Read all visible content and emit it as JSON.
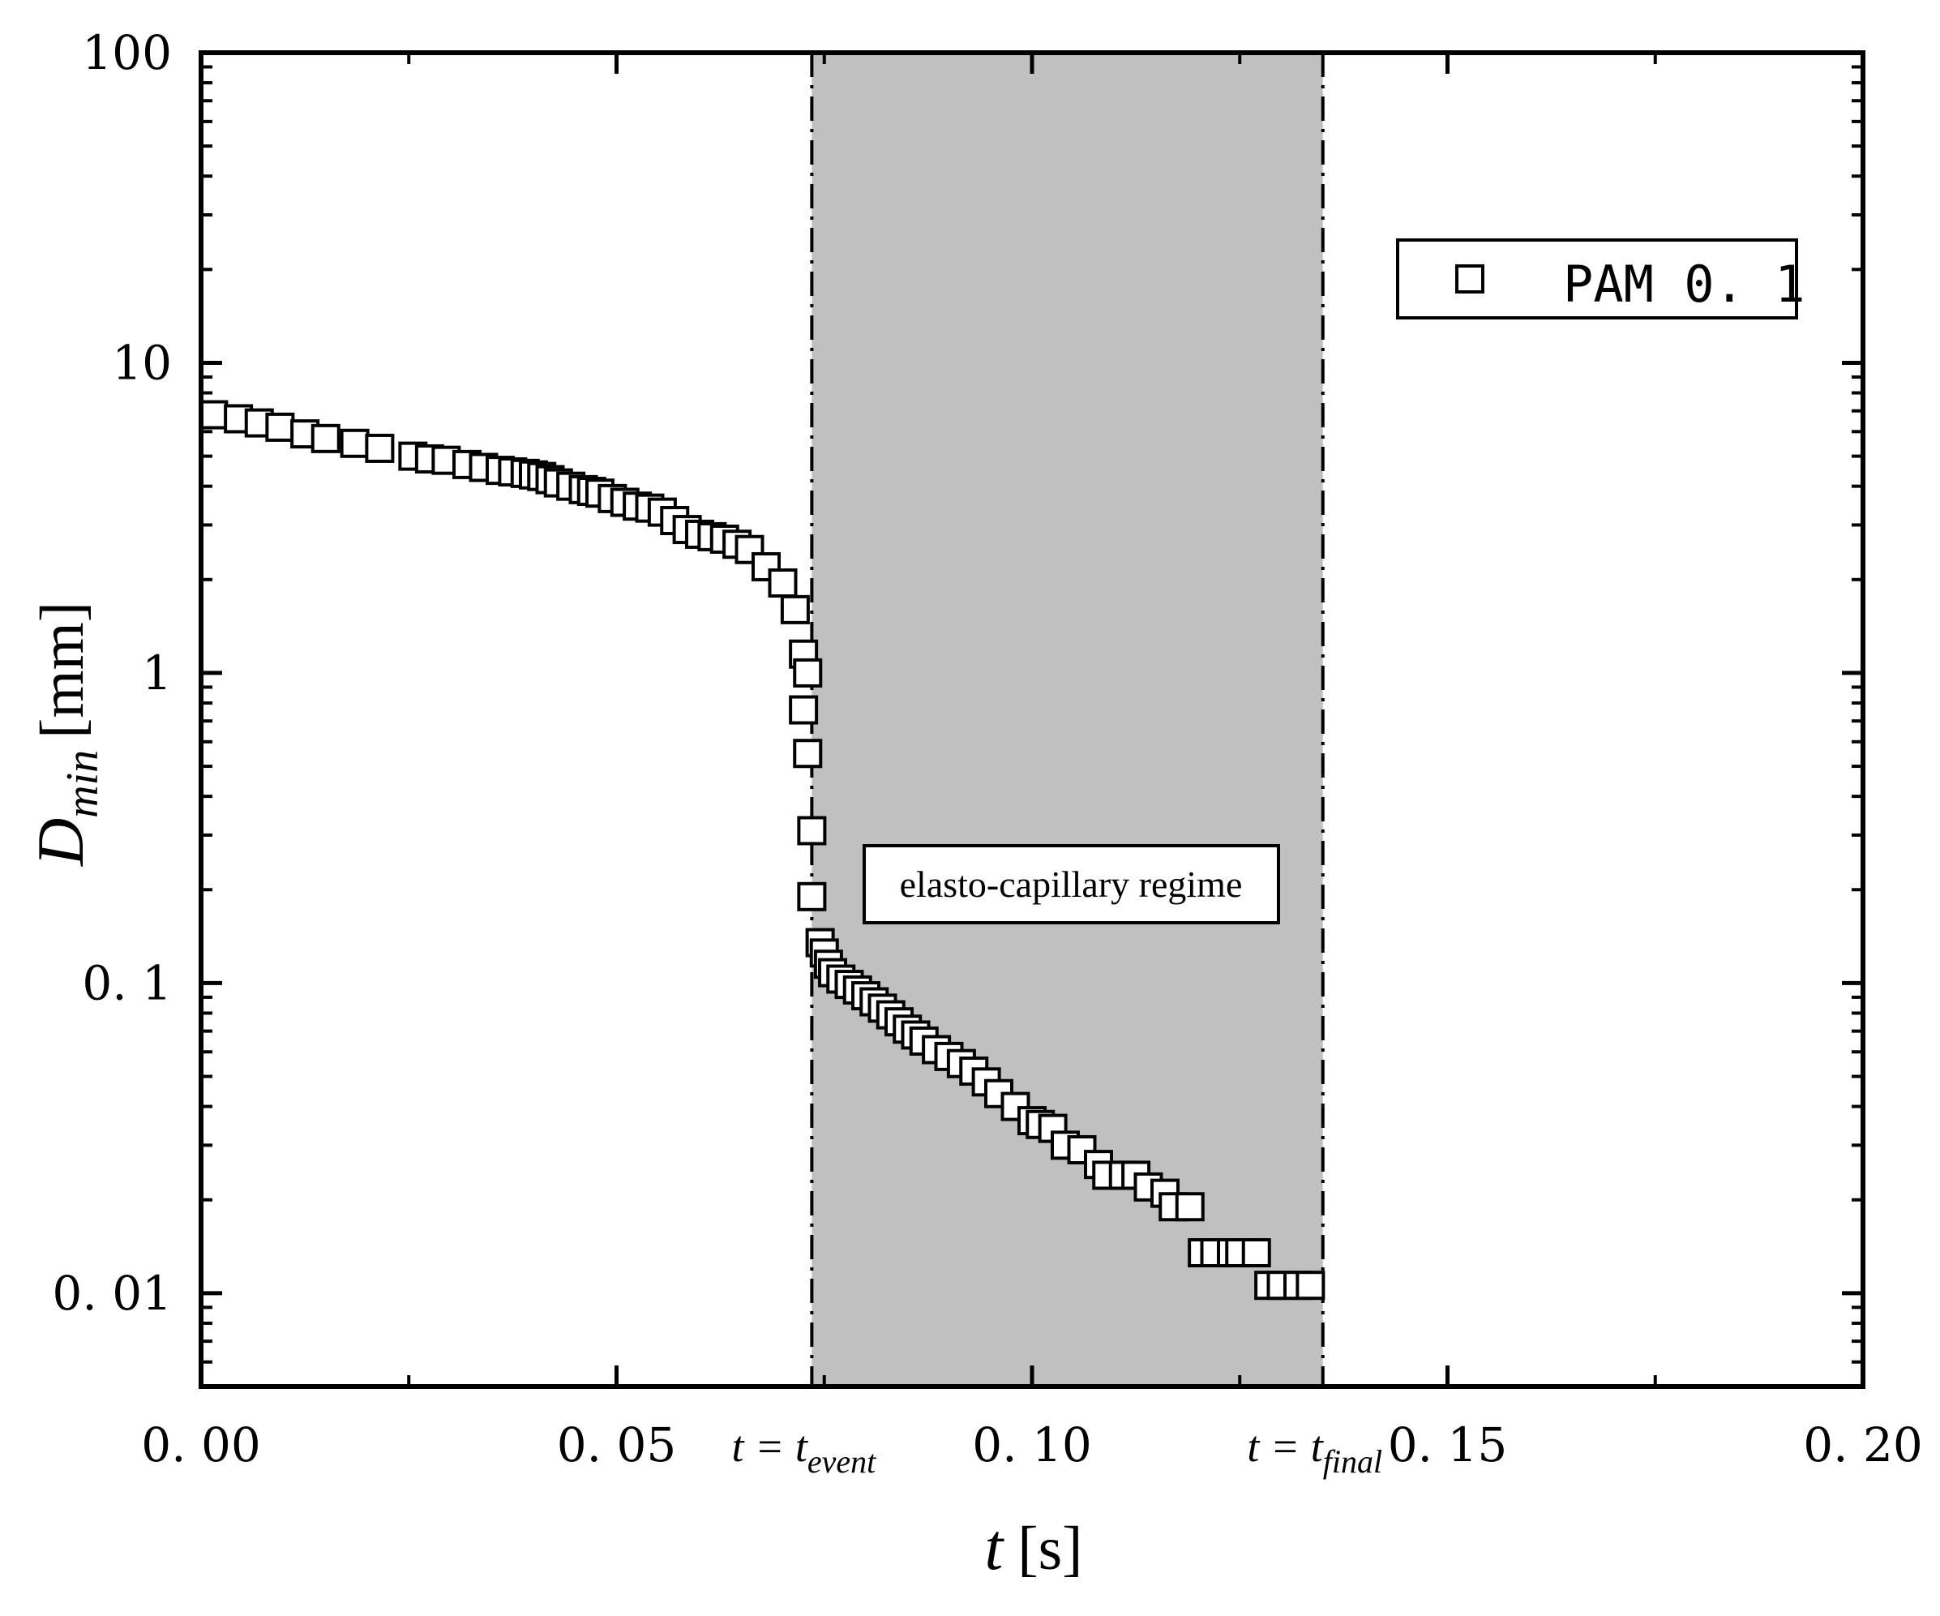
{
  "chart_data": {
    "type": "scatter",
    "xlabel_italic": "t",
    "xlabel_unit": "[s]",
    "ylabel_symbol": "D",
    "ylabel_sub": "min",
    "ylabel_unit": "[mm]",
    "yscale": "log",
    "xlim": [
      0.0,
      0.2
    ],
    "ylim": [
      0.005,
      100
    ],
    "x_tick_values": [
      0.0,
      0.05,
      0.1,
      0.15,
      0.2
    ],
    "x_tick_labels": [
      "0. 00",
      "0. 05",
      "0. 10",
      "0. 15",
      "0. 20"
    ],
    "y_tick_values": [
      0.01,
      0.1,
      1,
      10,
      100
    ],
    "y_tick_labels": [
      "0. 01",
      "0. 1",
      "1",
      "10",
      "100"
    ],
    "legend": {
      "label": "PAM 0.1",
      "label_display": "PAM 0. 1",
      "position": "top-right",
      "marker": "open-square"
    },
    "shaded_region": {
      "x_start": 0.0735,
      "x_end": 0.135,
      "color": "#c0c0c0",
      "label": "elasto-capillary regime"
    },
    "vlines": [
      {
        "x": 0.0735,
        "label_main": "t = t",
        "label_sub": "event"
      },
      {
        "x": 0.135,
        "label_main": "t = t",
        "label_sub": "final"
      }
    ],
    "series": [
      {
        "name": "PAM 0.1",
        "x": [
          0.0015,
          0.0045,
          0.007,
          0.0095,
          0.0125,
          0.015,
          0.0185,
          0.0215,
          0.0255,
          0.0275,
          0.0295,
          0.032,
          0.034,
          0.036,
          0.0375,
          0.039,
          0.04,
          0.041,
          0.042,
          0.043,
          0.0445,
          0.046,
          0.047,
          0.048,
          0.0495,
          0.051,
          0.0525,
          0.054,
          0.0555,
          0.057,
          0.0585,
          0.06,
          0.0615,
          0.063,
          0.0645,
          0.066,
          0.068,
          0.07,
          0.0715,
          0.0725,
          0.073,
          0.0725,
          0.073,
          0.0735,
          0.0735,
          0.0745,
          0.075,
          0.0755,
          0.076,
          0.077,
          0.078,
          0.079,
          0.08,
          0.081,
          0.082,
          0.083,
          0.084,
          0.085,
          0.086,
          0.087,
          0.0885,
          0.09,
          0.0915,
          0.093,
          0.0945,
          0.096,
          0.098,
          0.1,
          0.101,
          0.1025,
          0.104,
          0.106,
          0.108,
          0.109,
          0.111,
          0.1125,
          0.114,
          0.116,
          0.117,
          0.119,
          0.1205,
          0.122,
          0.124,
          0.125,
          0.127,
          0.1285,
          0.13,
          0.132,
          0.1335
        ],
        "y": [
          6.8,
          6.6,
          6.4,
          6.2,
          5.9,
          5.7,
          5.5,
          5.3,
          5.0,
          4.9,
          4.85,
          4.7,
          4.6,
          4.5,
          4.45,
          4.4,
          4.35,
          4.3,
          4.2,
          4.1,
          4.0,
          3.9,
          3.85,
          3.8,
          3.65,
          3.55,
          3.45,
          3.4,
          3.3,
          3.1,
          2.9,
          2.8,
          2.75,
          2.7,
          2.6,
          2.5,
          2.2,
          1.95,
          1.6,
          1.15,
          1.0,
          0.76,
          0.55,
          0.31,
          0.19,
          0.135,
          0.125,
          0.115,
          0.108,
          0.103,
          0.099,
          0.095,
          0.091,
          0.087,
          0.083,
          0.079,
          0.075,
          0.071,
          0.068,
          0.065,
          0.061,
          0.058,
          0.055,
          0.052,
          0.048,
          0.044,
          0.04,
          0.036,
          0.035,
          0.034,
          0.03,
          0.029,
          0.026,
          0.024,
          0.024,
          0.024,
          0.022,
          0.021,
          0.019,
          0.019,
          0.0135,
          0.0135,
          0.0135,
          0.0135,
          0.0135,
          0.0106,
          0.0106,
          0.0106,
          0.0106
        ]
      }
    ]
  }
}
